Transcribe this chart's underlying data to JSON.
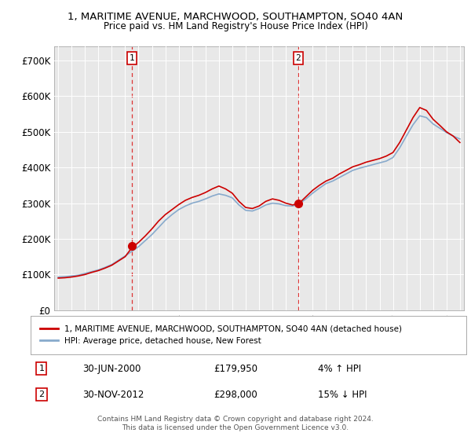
{
  "title_line1": "1, MARITIME AVENUE, MARCHWOOD, SOUTHAMPTON, SO40 4AN",
  "title_line2": "Price paid vs. HM Land Registry's House Price Index (HPI)",
  "background_color": "#ffffff",
  "plot_bg_color": "#e8e8e8",
  "grid_color": "#ffffff",
  "y_ticks": [
    0,
    100000,
    200000,
    300000,
    400000,
    500000,
    600000,
    700000
  ],
  "y_tick_labels": [
    "£0",
    "£100K",
    "£200K",
    "£300K",
    "£400K",
    "£500K",
    "£600K",
    "£700K"
  ],
  "ylim": [
    0,
    740000
  ],
  "x_start_year": 1995,
  "x_end_year": 2025,
  "sale1_year": 2000.5,
  "sale1_price": 179950,
  "sale1_label": "1",
  "sale1_date": "30-JUN-2000",
  "sale1_price_str": "£179,950",
  "sale1_hpi_change": "4% ↑ HPI",
  "sale2_year": 2012.917,
  "sale2_price": 298000,
  "sale2_label": "2",
  "sale2_date": "30-NOV-2012",
  "sale2_price_str": "£298,000",
  "sale2_hpi_change": "15% ↓ HPI",
  "red_line_color": "#cc0000",
  "blue_line_color": "#88aacc",
  "vline_color": "#dd3333",
  "dot_color": "#cc0000",
  "legend_label1": "1, MARITIME AVENUE, MARCHWOOD, SOUTHAMPTON, SO40 4AN (detached house)",
  "legend_label2": "HPI: Average price, detached house, New Forest",
  "footer1": "Contains HM Land Registry data © Crown copyright and database right 2024.",
  "footer2": "This data is licensed under the Open Government Licence v3.0.",
  "hpi_years": [
    1995.0,
    1995.5,
    1996.0,
    1996.5,
    1997.0,
    1997.5,
    1998.0,
    1998.5,
    1999.0,
    1999.5,
    2000.0,
    2000.5,
    2001.0,
    2001.5,
    2002.0,
    2002.5,
    2003.0,
    2003.5,
    2004.0,
    2004.5,
    2005.0,
    2005.5,
    2006.0,
    2006.5,
    2007.0,
    2007.5,
    2008.0,
    2008.5,
    2009.0,
    2009.5,
    2010.0,
    2010.5,
    2011.0,
    2011.5,
    2012.0,
    2012.5,
    2013.0,
    2013.5,
    2014.0,
    2014.5,
    2015.0,
    2015.5,
    2016.0,
    2016.5,
    2017.0,
    2017.5,
    2018.0,
    2018.5,
    2019.0,
    2019.5,
    2020.0,
    2020.5,
    2021.0,
    2021.5,
    2022.0,
    2022.5,
    2023.0,
    2023.5,
    2024.0,
    2024.5,
    2025.0
  ],
  "hpi_values": [
    93000,
    94000,
    96000,
    98000,
    103000,
    108000,
    113000,
    120000,
    128000,
    140000,
    152000,
    165000,
    178000,
    195000,
    212000,
    232000,
    252000,
    268000,
    282000,
    292000,
    300000,
    305000,
    312000,
    320000,
    326000,
    322000,
    315000,
    295000,
    280000,
    278000,
    285000,
    295000,
    300000,
    298000,
    293000,
    292000,
    298000,
    312000,
    328000,
    342000,
    355000,
    362000,
    372000,
    382000,
    392000,
    398000,
    403000,
    408000,
    413000,
    418000,
    428000,
    455000,
    488000,
    520000,
    545000,
    540000,
    522000,
    510000,
    498000,
    488000,
    480000
  ],
  "red_years": [
    1995.0,
    1995.5,
    1996.0,
    1996.5,
    1997.0,
    1997.5,
    1998.0,
    1998.5,
    1999.0,
    1999.5,
    2000.0,
    2000.5,
    2001.0,
    2001.5,
    2002.0,
    2002.5,
    2003.0,
    2003.5,
    2004.0,
    2004.5,
    2005.0,
    2005.5,
    2006.0,
    2006.5,
    2007.0,
    2007.5,
    2008.0,
    2008.5,
    2009.0,
    2009.5,
    2010.0,
    2010.5,
    2011.0,
    2011.5,
    2012.0,
    2012.5,
    2013.0,
    2013.5,
    2014.0,
    2014.5,
    2015.0,
    2015.5,
    2016.0,
    2016.5,
    2017.0,
    2017.5,
    2018.0,
    2018.5,
    2019.0,
    2019.5,
    2020.0,
    2020.5,
    2021.0,
    2021.5,
    2022.0,
    2022.5,
    2023.0,
    2023.5,
    2024.0,
    2024.5,
    2025.0
  ],
  "red_values": [
    90000,
    91000,
    93000,
    96000,
    100000,
    106000,
    111000,
    118000,
    126000,
    138000,
    150000,
    175000,
    190000,
    208000,
    228000,
    250000,
    268000,
    282000,
    296000,
    308000,
    316000,
    322000,
    330000,
    340000,
    348000,
    340000,
    328000,
    305000,
    288000,
    285000,
    292000,
    305000,
    312000,
    308000,
    300000,
    295000,
    300000,
    318000,
    336000,
    350000,
    362000,
    370000,
    382000,
    392000,
    402000,
    408000,
    415000,
    420000,
    425000,
    432000,
    442000,
    470000,
    505000,
    540000,
    568000,
    560000,
    535000,
    518000,
    500000,
    488000,
    470000
  ]
}
